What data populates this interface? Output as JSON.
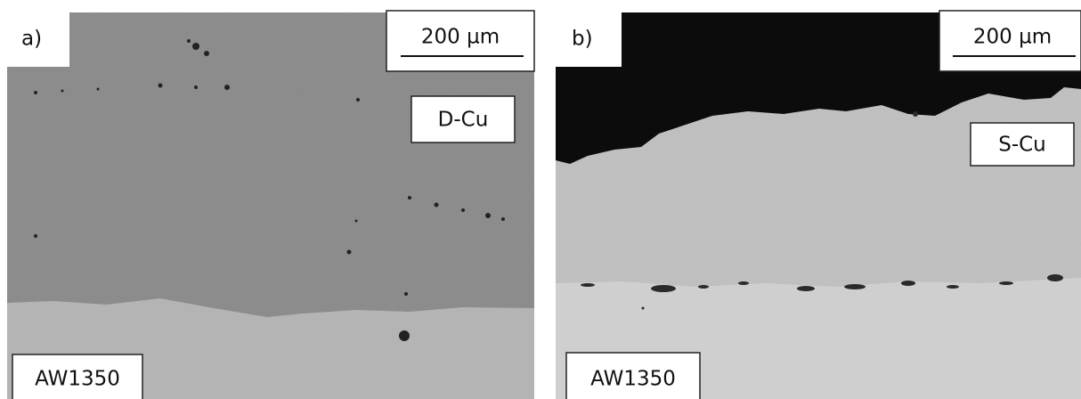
{
  "panels": [
    {
      "label": "a)",
      "scale_bar": "200 µm",
      "layer_label": "D-Cu",
      "substrate_label": "AW1350"
    },
    {
      "label": "b)",
      "scale_bar": "200 µm",
      "layer_label": "S-Cu",
      "substrate_label": "AW1350"
    }
  ]
}
